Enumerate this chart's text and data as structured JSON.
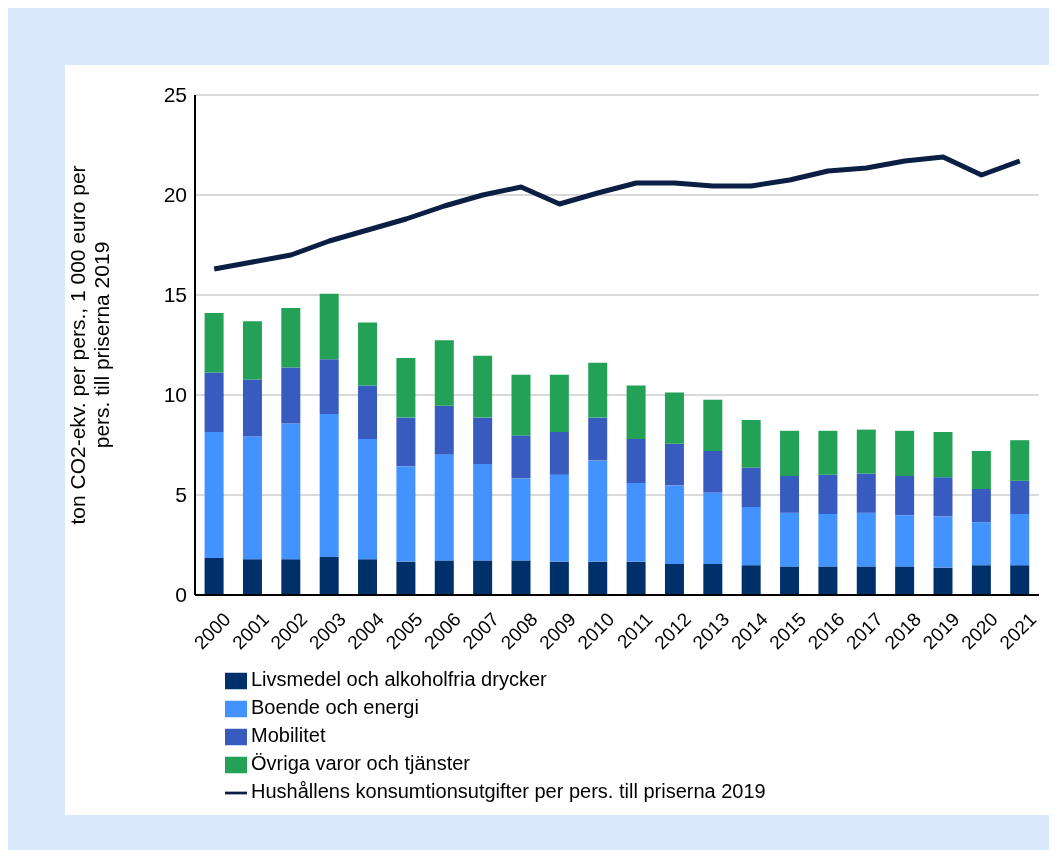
{
  "chart_data": {
    "type": "bar",
    "stacked": true,
    "ylabel": "ton CO2-ekv. per pers., 1 000 euro per pers. till priserna 2019",
    "categories": [
      "2000",
      "2001",
      "2002",
      "2003",
      "2004",
      "2005",
      "2006",
      "2007",
      "2008",
      "2009",
      "2010",
      "2011",
      "2012",
      "2013",
      "2014",
      "2015",
      "2016",
      "2017",
      "2018",
      "2019",
      "2020",
      "2021"
    ],
    "series": [
      {
        "name": "Livsmedel och alkoholfria drycker",
        "color": "#003069",
        "values": [
          1.85,
          1.79,
          1.79,
          1.9,
          1.79,
          1.67,
          1.73,
          1.73,
          1.73,
          1.67,
          1.67,
          1.67,
          1.55,
          1.55,
          1.49,
          1.43,
          1.43,
          1.43,
          1.43,
          1.37,
          1.49,
          1.49
        ]
      },
      {
        "name": "Boende och energi",
        "color": "#4293ff",
        "values": [
          6.3,
          6.13,
          6.78,
          7.15,
          6.01,
          4.76,
          5.29,
          4.82,
          4.1,
          4.34,
          5.06,
          3.93,
          3.93,
          3.57,
          2.91,
          2.68,
          2.62,
          2.68,
          2.56,
          2.56,
          2.14,
          2.56
        ]
      },
      {
        "name": "Mobilitet",
        "color": "#375bbf",
        "values": [
          2.98,
          2.85,
          2.8,
          2.74,
          2.68,
          2.44,
          2.44,
          2.32,
          2.15,
          2.14,
          2.14,
          2.2,
          2.08,
          2.08,
          1.97,
          1.84,
          1.96,
          1.96,
          1.96,
          1.96,
          1.67,
          1.66
        ]
      },
      {
        "name": "Övriga varor och tjänster",
        "color": "#22a157",
        "values": [
          2.97,
          2.92,
          2.98,
          3.27,
          3.15,
          2.98,
          3.28,
          3.09,
          3.03,
          2.86,
          2.74,
          2.68,
          2.56,
          2.56,
          2.38,
          2.26,
          2.2,
          2.2,
          2.26,
          2.26,
          1.9,
          2.03
        ]
      },
      {
        "name": "Hushållens konsumtionsutgifter per pers. till priserna 2019",
        "type": "line",
        "color": "#0b1f44",
        "values": [
          16.3,
          16.65,
          17.0,
          17.7,
          18.25,
          18.8,
          19.45,
          20.0,
          20.4,
          19.55,
          20.1,
          20.6,
          20.6,
          20.45,
          20.45,
          20.75,
          21.2,
          21.35,
          21.7,
          21.9,
          21.0,
          21.7
        ]
      }
    ],
    "ylim": [
      0,
      25
    ],
    "yticks": [
      0,
      5,
      10,
      15,
      20,
      25
    ],
    "grid": "y",
    "legend": "bottom",
    "marker": "none"
  }
}
